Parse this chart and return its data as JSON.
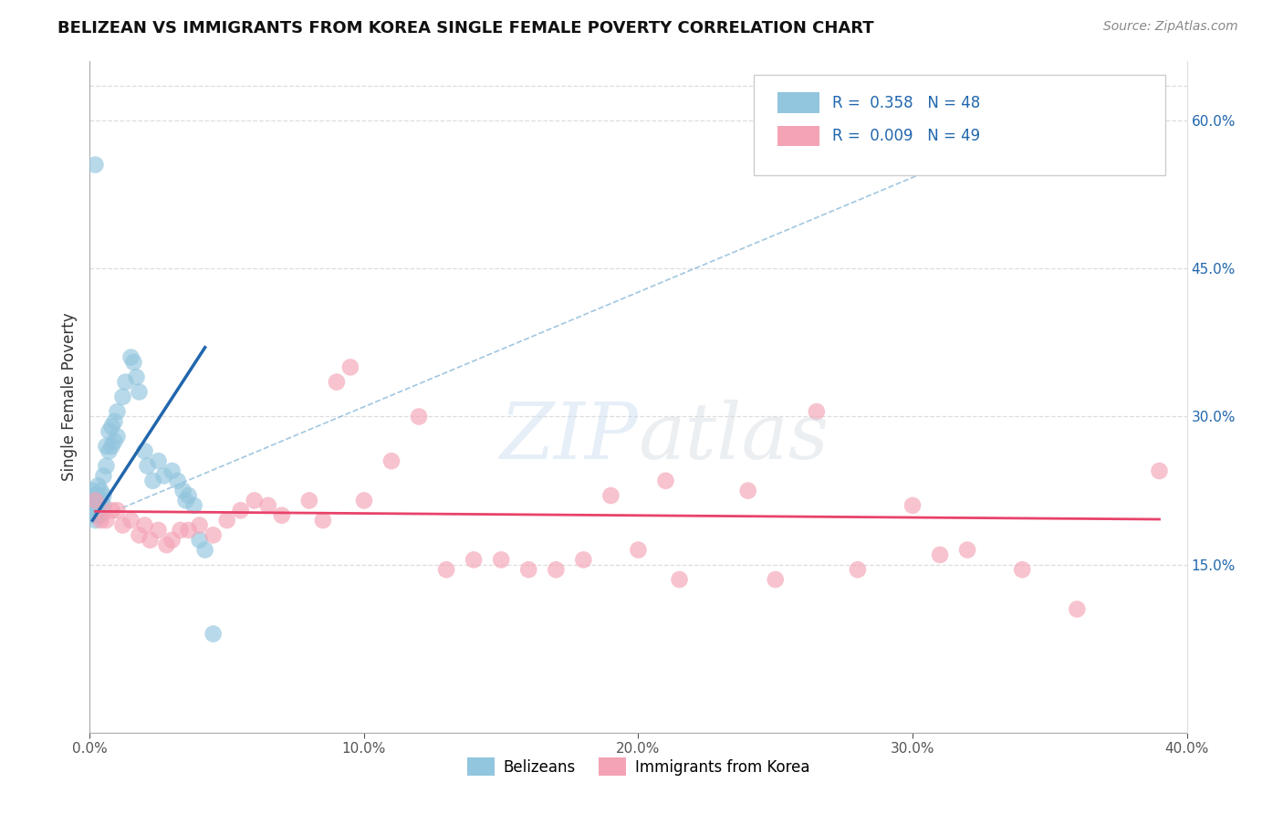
{
  "title": "BELIZEAN VS IMMIGRANTS FROM KOREA SINGLE FEMALE POVERTY CORRELATION CHART",
  "source": "Source: ZipAtlas.com",
  "ylabel": "Single Female Poverty",
  "legend_labels": [
    "Belizeans",
    "Immigrants from Korea"
  ],
  "legend_r": [
    0.358,
    0.009
  ],
  "legend_n": [
    48,
    49
  ],
  "blue_color": "#92c5de",
  "pink_color": "#f4a3b5",
  "blue_line_color": "#2166ac",
  "pink_line_color": "#e8436a",
  "diag_color": "#7bafd4",
  "xlim": [
    0.0,
    0.4
  ],
  "ylim": [
    -0.02,
    0.66
  ],
  "xticks": [
    0.0,
    0.1,
    0.2,
    0.3,
    0.4
  ],
  "xtick_labels": [
    "0.0%",
    "10.0%",
    "20.0%",
    "30.0%",
    "40.0%"
  ],
  "yticks_right": [
    0.15,
    0.3,
    0.45,
    0.6
  ],
  "ytick_labels_right": [
    "15.0%",
    "30.0%",
    "45.0%",
    "60.0%"
  ],
  "blue_x": [
    0.001,
    0.001,
    0.001,
    0.002,
    0.002,
    0.002,
    0.002,
    0.003,
    0.003,
    0.003,
    0.003,
    0.004,
    0.004,
    0.004,
    0.005,
    0.005,
    0.005,
    0.006,
    0.006,
    0.007,
    0.007,
    0.008,
    0.008,
    0.009,
    0.009,
    0.01,
    0.01,
    0.012,
    0.013,
    0.015,
    0.016,
    0.017,
    0.018,
    0.02,
    0.021,
    0.023,
    0.025,
    0.027,
    0.03,
    0.032,
    0.034,
    0.035,
    0.036,
    0.038,
    0.04,
    0.042,
    0.045,
    0.002
  ],
  "blue_y": [
    0.225,
    0.215,
    0.2,
    0.22,
    0.215,
    0.205,
    0.195,
    0.23,
    0.22,
    0.21,
    0.2,
    0.225,
    0.215,
    0.2,
    0.24,
    0.22,
    0.21,
    0.27,
    0.25,
    0.285,
    0.265,
    0.29,
    0.27,
    0.295,
    0.275,
    0.305,
    0.28,
    0.32,
    0.335,
    0.36,
    0.355,
    0.34,
    0.325,
    0.265,
    0.25,
    0.235,
    0.255,
    0.24,
    0.245,
    0.235,
    0.225,
    0.215,
    0.22,
    0.21,
    0.175,
    0.165,
    0.08,
    0.555
  ],
  "pink_x": [
    0.002,
    0.004,
    0.006,
    0.008,
    0.01,
    0.012,
    0.015,
    0.018,
    0.02,
    0.022,
    0.025,
    0.028,
    0.03,
    0.033,
    0.036,
    0.04,
    0.045,
    0.05,
    0.055,
    0.06,
    0.065,
    0.07,
    0.08,
    0.085,
    0.09,
    0.095,
    0.1,
    0.11,
    0.12,
    0.13,
    0.14,
    0.15,
    0.16,
    0.17,
    0.18,
    0.19,
    0.2,
    0.21,
    0.215,
    0.24,
    0.25,
    0.265,
    0.28,
    0.3,
    0.31,
    0.32,
    0.34,
    0.36,
    0.39
  ],
  "pink_y": [
    0.215,
    0.195,
    0.195,
    0.205,
    0.205,
    0.19,
    0.195,
    0.18,
    0.19,
    0.175,
    0.185,
    0.17,
    0.175,
    0.185,
    0.185,
    0.19,
    0.18,
    0.195,
    0.205,
    0.215,
    0.21,
    0.2,
    0.215,
    0.195,
    0.335,
    0.35,
    0.215,
    0.255,
    0.3,
    0.145,
    0.155,
    0.155,
    0.145,
    0.145,
    0.155,
    0.22,
    0.165,
    0.235,
    0.135,
    0.225,
    0.135,
    0.305,
    0.145,
    0.21,
    0.16,
    0.165,
    0.145,
    0.105,
    0.245
  ],
  "blue_line_x": [
    0.001,
    0.042
  ],
  "blue_line_y": [
    0.195,
    0.37
  ],
  "diag_line_x": [
    0.001,
    0.38
  ],
  "diag_line_y": [
    0.195,
    0.635
  ],
  "pink_line_x": [
    0.002,
    0.39
  ],
  "pink_line_y": [
    0.204,
    0.196
  ]
}
